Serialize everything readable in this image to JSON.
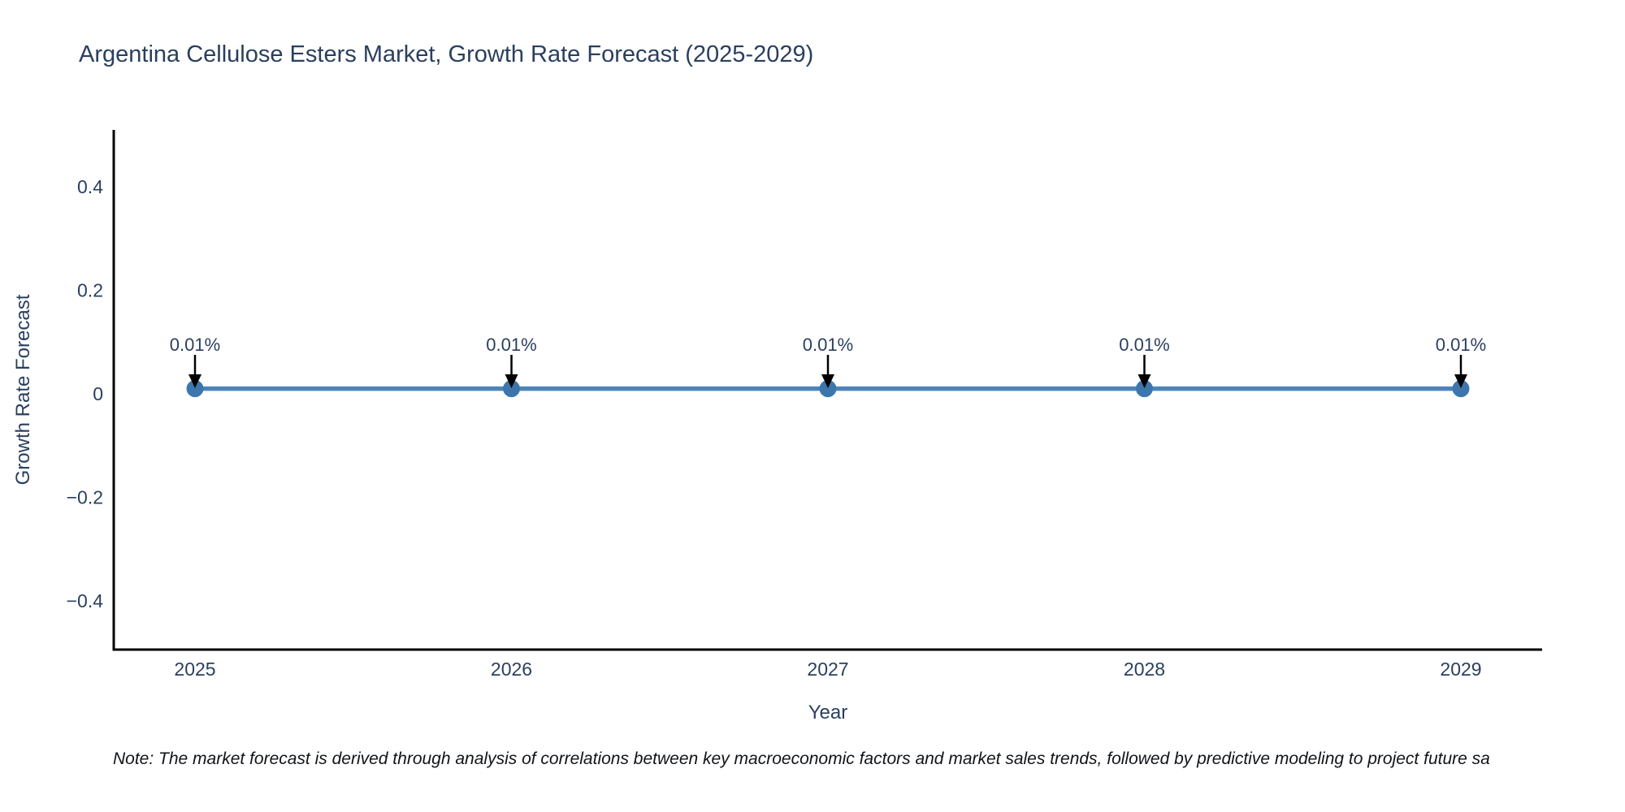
{
  "page": {
    "background": "#ffffff"
  },
  "title": "Argentina Cellulose Esters Market, Growth Rate Forecast (2025-2029)",
  "note": "Note: The market forecast is derived through analysis of correlations between key macroeconomic factors and market sales trends, followed by predictive modeling to project future sa",
  "chart_data": {
    "type": "line",
    "title": "Argentina Cellulose Esters Market, Growth Rate Forecast (2025-2029)",
    "xlabel": "Year",
    "ylabel": "Growth Rate Forecast",
    "x": [
      2025,
      2026,
      2027,
      2028,
      2029
    ],
    "xtick_labels": [
      "2025",
      "2026",
      "2027",
      "2028",
      "2029"
    ],
    "series": [
      {
        "name": "Growth Rate Forecast",
        "values": [
          0.01,
          0.01,
          0.01,
          0.01,
          0.01
        ],
        "unit": "%"
      }
    ],
    "point_labels": [
      "0.01%",
      "0.01%",
      "0.01%",
      "0.01%",
      "0.01%"
    ],
    "ylim": [
      -0.5,
      0.51
    ],
    "yticks": [
      0.4,
      0.2,
      0,
      -0.2,
      -0.4
    ],
    "ytick_labels": [
      "0.4",
      "0.2",
      "0",
      "−0.2",
      "−0.4"
    ],
    "grid": false,
    "legend_position": "none",
    "annotation_style": "arrow-down-to-point",
    "colors": {
      "line": "#4f84b8",
      "marker": "#3c76ad",
      "arrow": "#000000",
      "axis_line": "#000000",
      "tick_text": "#2a3f5f",
      "title_text": "#2a3f5f",
      "note_text": "#101418"
    }
  }
}
